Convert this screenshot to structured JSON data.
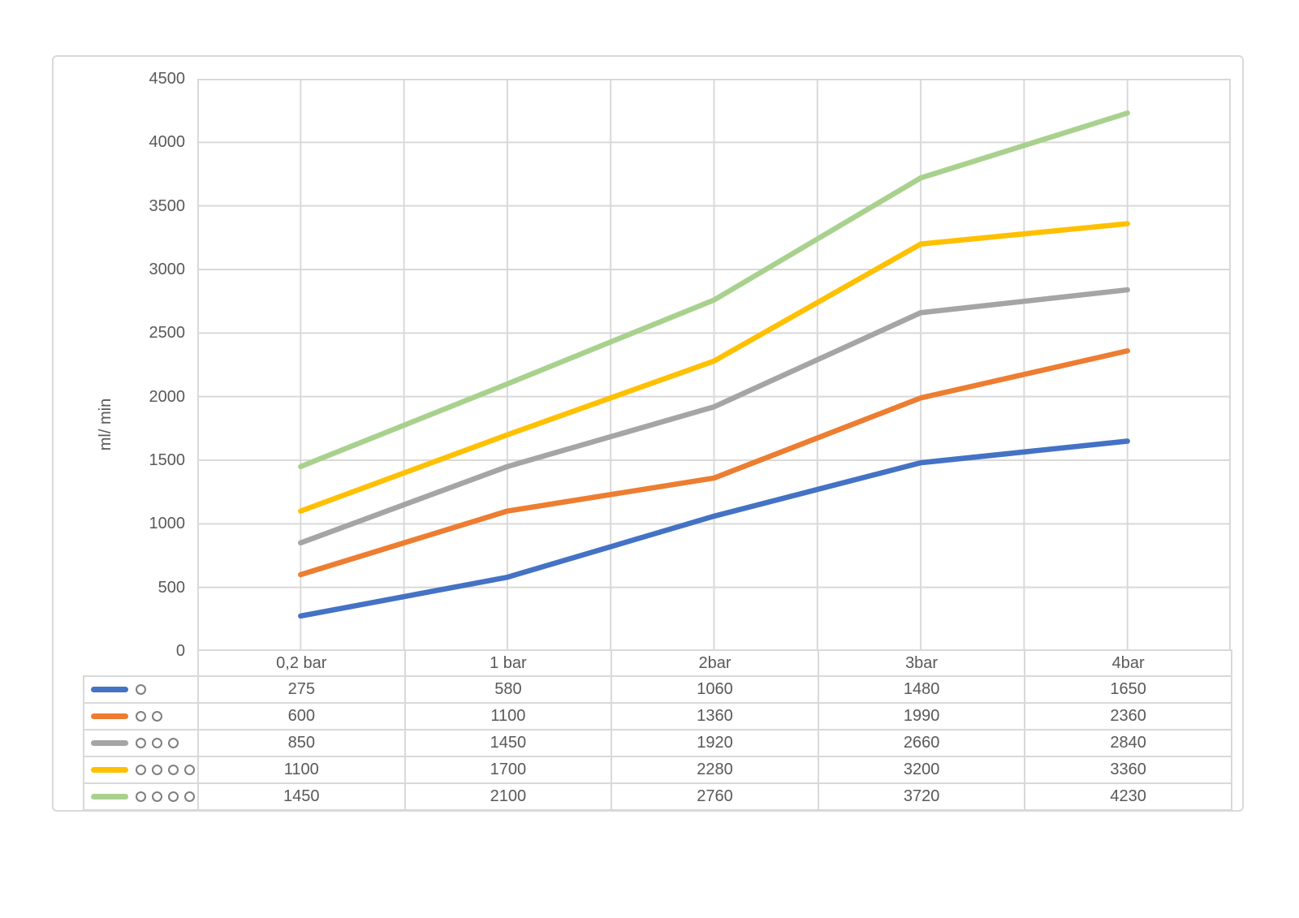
{
  "chart_data": {
    "type": "line",
    "title": "",
    "xlabel": "",
    "ylabel": "ml/ min",
    "categories": [
      "0,2 bar",
      "1 bar",
      "2bar",
      "3bar",
      "4bar"
    ],
    "series": [
      {
        "name": "○",
        "circles": 1,
        "color": "#4472C4",
        "values": [
          275,
          580,
          1060,
          1480,
          1650
        ]
      },
      {
        "name": "○ ○",
        "circles": 2,
        "color": "#ED7D31",
        "values": [
          600,
          1100,
          1360,
          1990,
          2360
        ]
      },
      {
        "name": "○ ○ ○",
        "circles": 3,
        "color": "#A5A5A5",
        "values": [
          850,
          1450,
          1920,
          2660,
          2840
        ]
      },
      {
        "name": "○ ○ ○ ○",
        "circles": 4,
        "color": "#FFC000",
        "values": [
          1100,
          1700,
          2280,
          3200,
          3360
        ]
      },
      {
        "name": "○ ○ ○ ○ ○",
        "circles": 5,
        "color": "#A9D18E",
        "values": [
          1450,
          2100,
          2760,
          3720,
          4230
        ]
      }
    ],
    "ylim": [
      0,
      4500
    ],
    "yticks": [
      0,
      500,
      1000,
      1500,
      2000,
      2500,
      3000,
      3500,
      4000,
      4500
    ],
    "grid": {
      "horizontal": "major",
      "vertical": "major-and-minor"
    },
    "legend_position": "data-table-left-column",
    "colors": {
      "gridline": "#D9D9D9",
      "axis_text": "#595959",
      "table_border": "#D9D9D9",
      "legend_circle_outline": "#7F7F7F",
      "chart_border": "#D9D9D9",
      "background": "#FFFFFF"
    }
  }
}
